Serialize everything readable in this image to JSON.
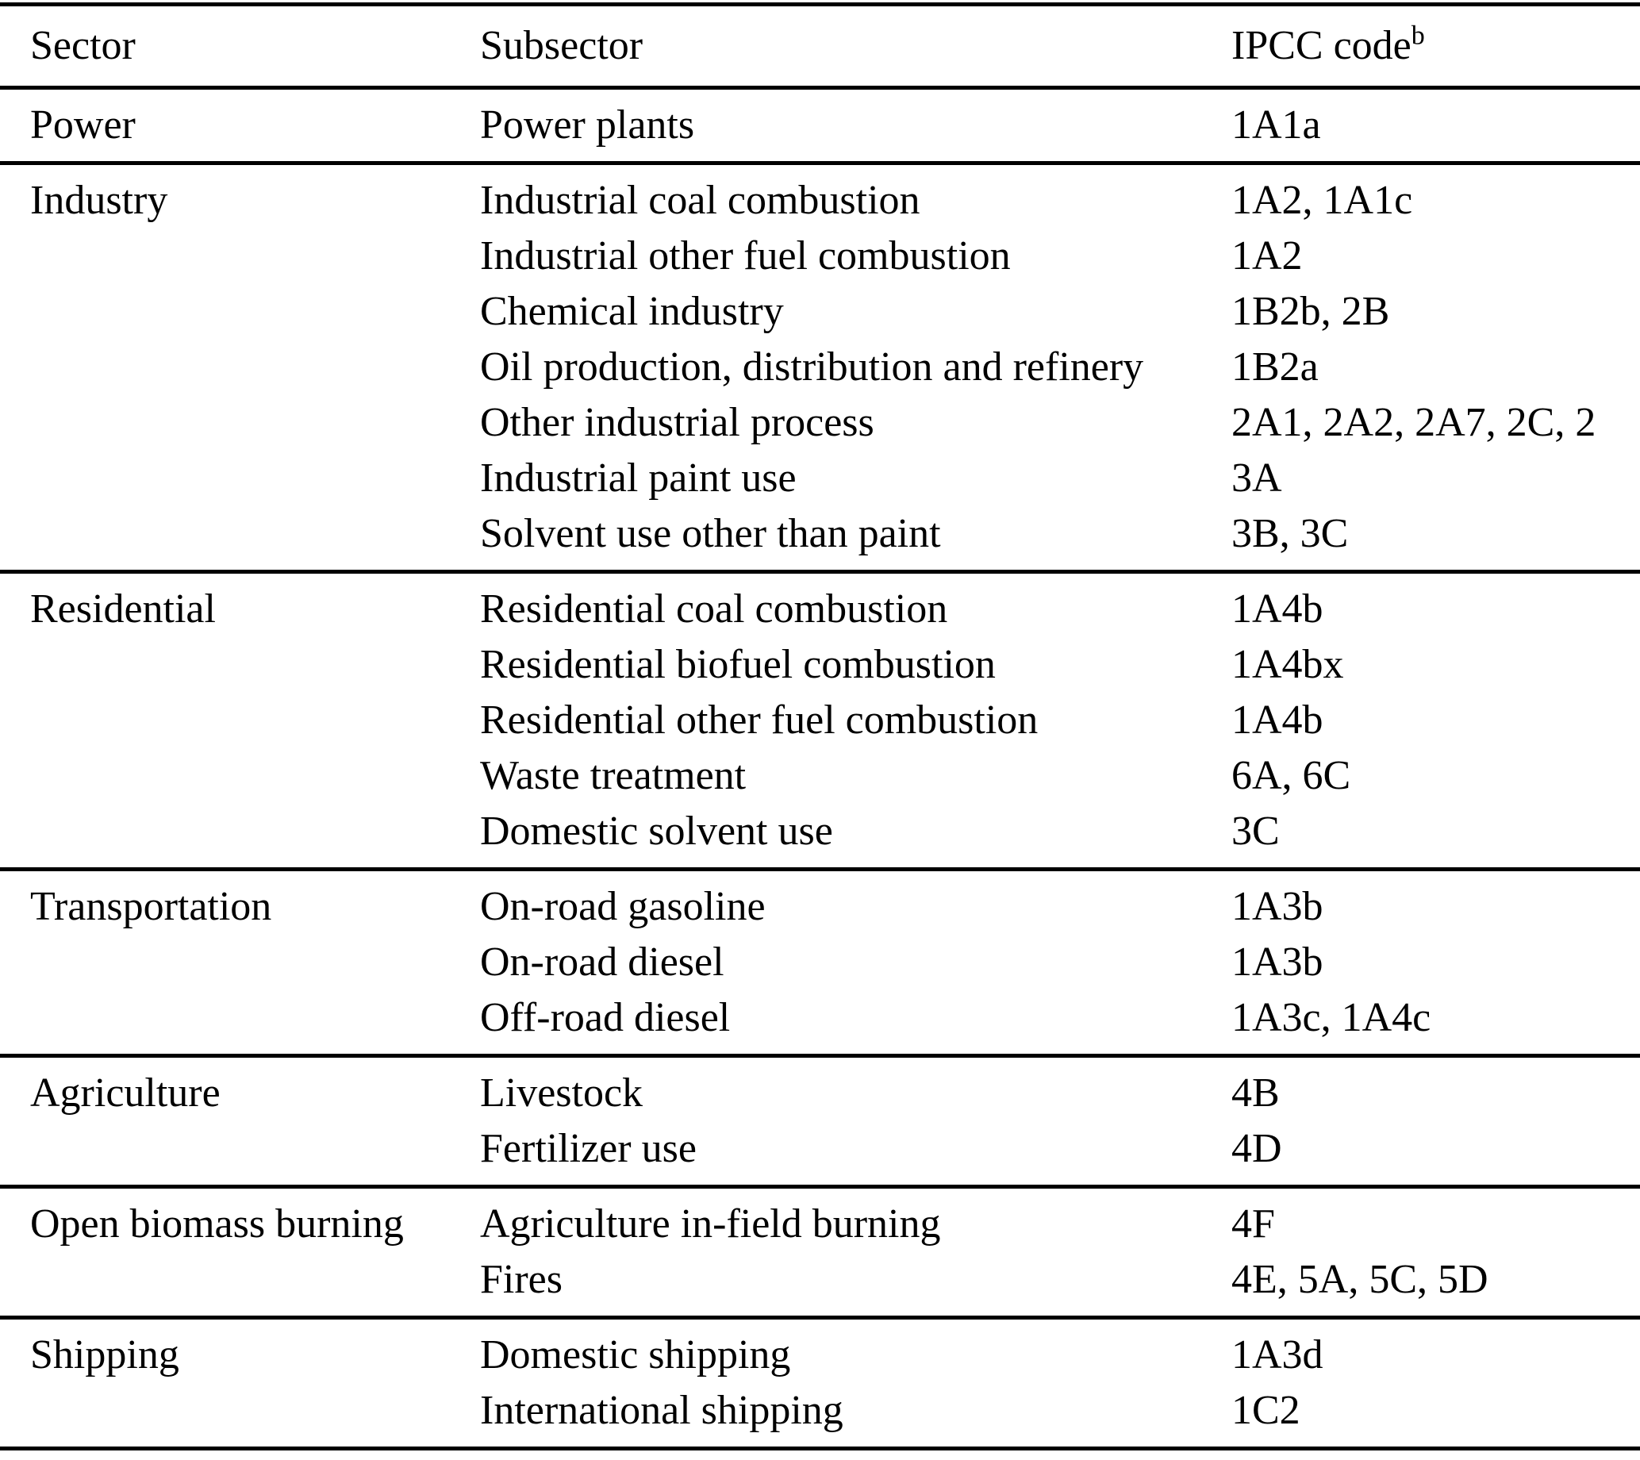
{
  "table": {
    "header": {
      "sector": "Sector",
      "subsector": "Subsector",
      "ipcc_code": "IPCC code",
      "ipcc_code_superscript": "b"
    },
    "colors": {
      "text": "#000000",
      "background": "#ffffff",
      "rule": "#000000"
    },
    "sections": [
      {
        "sector": "Power",
        "rows": [
          {
            "subsector": "Power plants",
            "code": "1A1a"
          }
        ]
      },
      {
        "sector": "Industry",
        "rows": [
          {
            "subsector": "Industrial coal combustion",
            "code": "1A2, 1A1c"
          },
          {
            "subsector": "Industrial other fuel combustion",
            "code": "1A2"
          },
          {
            "subsector": "Chemical industry",
            "code": "1B2b, 2B"
          },
          {
            "subsector": "Oil production, distribution and refinery",
            "code": "1B2a"
          },
          {
            "subsector": "Other industrial process",
            "code": "2A1, 2A2, 2A7, 2C, 2"
          },
          {
            "subsector": "Industrial paint use",
            "code": "3A"
          },
          {
            "subsector": "Solvent use other than paint",
            "code": "3B, 3C"
          }
        ]
      },
      {
        "sector": "Residential",
        "rows": [
          {
            "subsector": "Residential coal combustion",
            "code": "1A4b"
          },
          {
            "subsector": "Residential biofuel combustion",
            "code": "1A4bx"
          },
          {
            "subsector": "Residential other fuel combustion",
            "code": "1A4b"
          },
          {
            "subsector": "Waste treatment",
            "code": "6A, 6C"
          },
          {
            "subsector": "Domestic solvent use",
            "code": "3C"
          }
        ]
      },
      {
        "sector": "Transportation",
        "rows": [
          {
            "subsector": "On-road gasoline",
            "code": "1A3b"
          },
          {
            "subsector": "On-road diesel",
            "code": "1A3b"
          },
          {
            "subsector": "Off-road diesel",
            "code": "1A3c, 1A4c"
          }
        ]
      },
      {
        "sector": "Agriculture",
        "rows": [
          {
            "subsector": "Livestock",
            "code": "4B"
          },
          {
            "subsector": "Fertilizer use",
            "code": "4D"
          }
        ]
      },
      {
        "sector": "Open biomass burning",
        "rows": [
          {
            "subsector": "Agriculture in-field burning",
            "code": "4F"
          },
          {
            "subsector": "Fires",
            "code": "4E, 5A, 5C, 5D"
          }
        ]
      },
      {
        "sector": "Shipping",
        "rows": [
          {
            "subsector": "Domestic shipping",
            "code": "1A3d"
          },
          {
            "subsector": "International shipping",
            "code": "1C2"
          }
        ]
      }
    ]
  }
}
